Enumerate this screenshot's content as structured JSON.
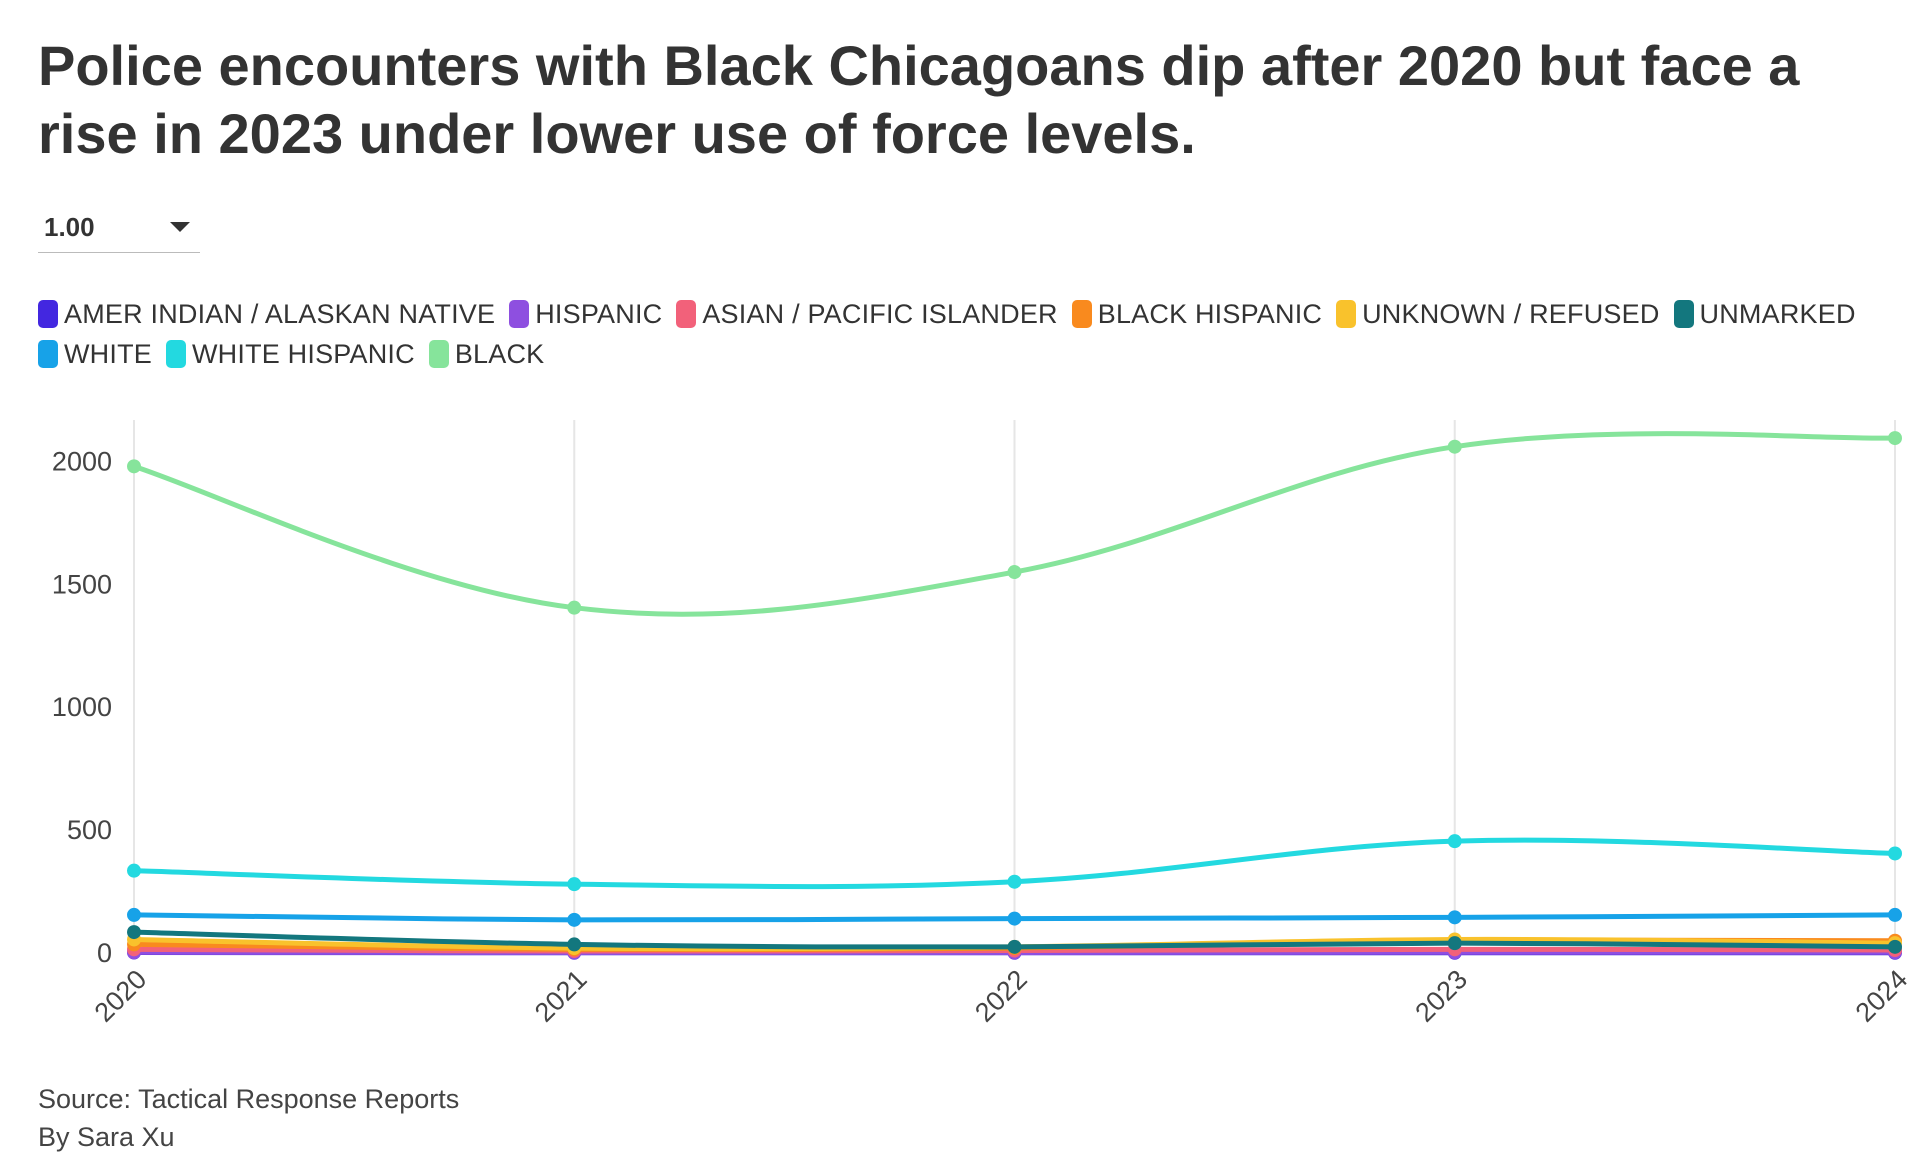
{
  "title": "Police encounters with Black Chicagoans dip after 2020 but face a rise in 2023 under lower use of force levels.",
  "dropdown": {
    "selected": "1.00"
  },
  "footer": {
    "source": "Source: Tactical Response Reports",
    "byline": "By Sara Xu"
  },
  "chart_data": {
    "type": "line",
    "x": [
      "2020",
      "2021",
      "2022",
      "2023",
      "2024"
    ],
    "ylim": [
      0,
      2250
    ],
    "yticks": [
      0,
      500,
      1000,
      1500,
      2000
    ],
    "xlabel": "",
    "ylabel": "",
    "grid": "vertical",
    "legend_position": "top",
    "series": [
      {
        "name": "AMER INDIAN / ALASKAN NATIVE",
        "color": "#4327e0",
        "values": [
          2,
          1,
          1,
          1,
          1
        ]
      },
      {
        "name": "HISPANIC",
        "color": "#8e4fe0",
        "values": [
          3,
          2,
          2,
          3,
          3
        ]
      },
      {
        "name": "ASIAN / PACIFIC ISLANDER",
        "color": "#f2617a",
        "values": [
          15,
          8,
          10,
          15,
          12
        ]
      },
      {
        "name": "BLACK HISPANIC",
        "color": "#f98a1e",
        "values": [
          35,
          15,
          20,
          50,
          50
        ]
      },
      {
        "name": "UNKNOWN / REFUSED",
        "color": "#f9c22c",
        "values": [
          55,
          20,
          25,
          55,
          40
        ]
      },
      {
        "name": "UNMARKED",
        "color": "#13777e",
        "values": [
          85,
          35,
          25,
          40,
          25
        ]
      },
      {
        "name": "WHITE",
        "color": "#17a2e8",
        "values": [
          155,
          135,
          140,
          145,
          155
        ]
      },
      {
        "name": "WHITE HISPANIC",
        "color": "#23d9e0",
        "values": [
          335,
          280,
          290,
          455,
          405
        ]
      },
      {
        "name": "BLACK",
        "color": "#86e49b",
        "values": [
          1980,
          1405,
          1550,
          2060,
          2095
        ]
      }
    ]
  }
}
